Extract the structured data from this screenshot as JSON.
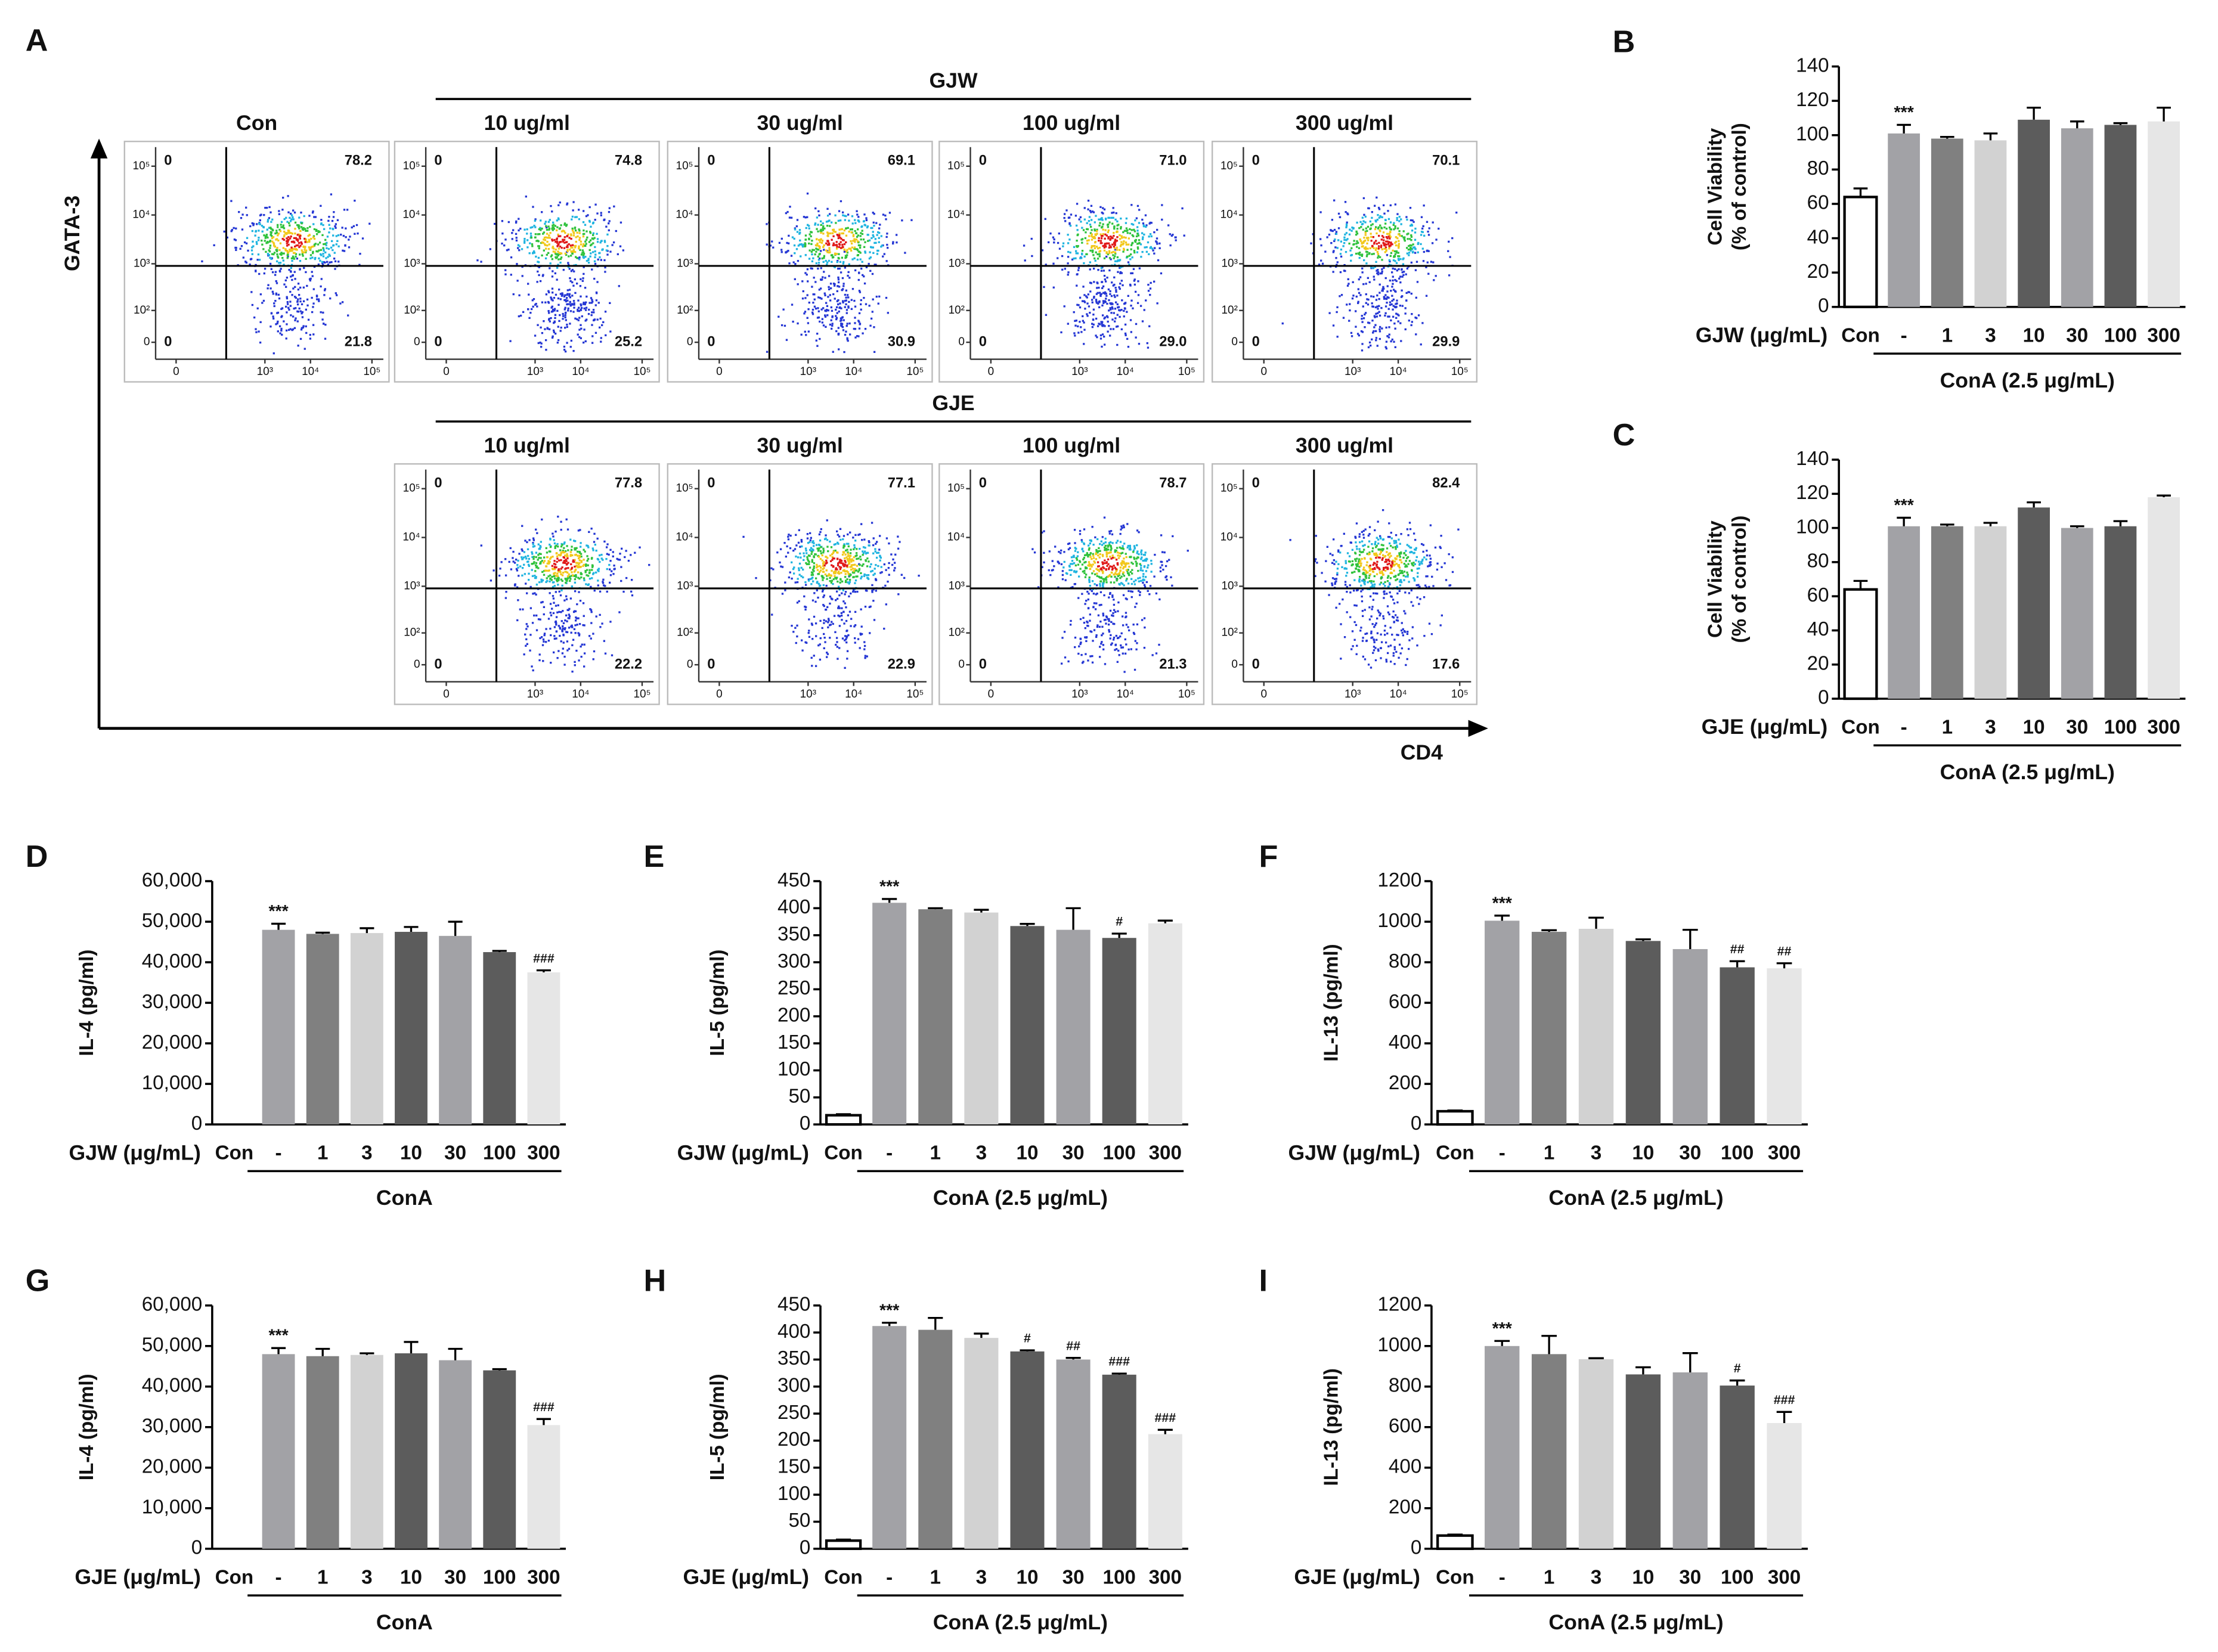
{
  "flow": {
    "label": "A",
    "y_label": "GATA-3",
    "x_label": "CD4",
    "yticks": [
      "10⁵",
      "10⁴",
      "10³",
      "10²",
      "0"
    ],
    "xticks": [
      "0",
      "10³",
      "10⁴",
      "10⁵"
    ],
    "control": {
      "title": "Con",
      "quadrants": [
        "0",
        "78.2",
        "0",
        "21.8"
      ]
    },
    "groups": [
      {
        "name": "GJW",
        "panels": [
          {
            "title": "10 ug/ml",
            "quadrants": [
              "0",
              "74.8",
              "0",
              "25.2"
            ]
          },
          {
            "title": "30 ug/ml",
            "quadrants": [
              "0",
              "69.1",
              "0",
              "30.9"
            ]
          },
          {
            "title": "100 ug/ml",
            "quadrants": [
              "0",
              "71.0",
              "0",
              "29.0"
            ]
          },
          {
            "title": "300 ug/ml",
            "quadrants": [
              "0",
              "70.1",
              "0",
              "29.9"
            ]
          }
        ]
      },
      {
        "name": "GJE",
        "panels": [
          {
            "title": "10 ug/ml",
            "quadrants": [
              "0",
              "77.8",
              "0",
              "22.2"
            ]
          },
          {
            "title": "30 ug/ml",
            "quadrants": [
              "0",
              "77.1",
              "0",
              "22.9"
            ]
          },
          {
            "title": "100 ug/ml",
            "quadrants": [
              "0",
              "78.7",
              "0",
              "21.3"
            ]
          },
          {
            "title": "300 ug/ml",
            "quadrants": [
              "0",
              "82.4",
              "0",
              "17.6"
            ]
          }
        ]
      }
    ]
  },
  "chart_data": [
    {
      "type": "bar",
      "label": "B",
      "y_label": [
        "Cell Viability",
        "(% of control)"
      ],
      "x_label": "GJW (μg/mL)",
      "group_label": "ConA (2.5 μg/mL)",
      "categories": [
        "Con",
        "-",
        "1",
        "3",
        "10",
        "30",
        "100",
        "300"
      ],
      "values": [
        64,
        101,
        98,
        97,
        109,
        104,
        106,
        108
      ],
      "errors": [
        5,
        5,
        1,
        4,
        7,
        4,
        1,
        8
      ],
      "annotations": [
        null,
        "***",
        null,
        null,
        null,
        null,
        null,
        null
      ],
      "colors": [
        "#ffffff",
        "#a2a2a6",
        "#808080",
        "#d2d2d2",
        "#5c5c5c",
        "#a2a2a6",
        "#5c5c5c",
        "#e6e6e6"
      ],
      "ylim": [
        0,
        140
      ],
      "yticks": [
        0,
        20,
        40,
        60,
        80,
        100,
        120,
        140
      ]
    },
    {
      "type": "bar",
      "label": "C",
      "y_label": [
        "Cell Viability",
        "(% of control)"
      ],
      "x_label": "GJE (μg/mL)",
      "group_label": "ConA (2.5 μg/mL)",
      "categories": [
        "Con",
        "-",
        "1",
        "3",
        "10",
        "30",
        "100",
        "300"
      ],
      "values": [
        64,
        101,
        101,
        101,
        112,
        100,
        101,
        118
      ],
      "errors": [
        5,
        5,
        1,
        2,
        3,
        1,
        3,
        1
      ],
      "annotations": [
        null,
        "***",
        null,
        null,
        null,
        null,
        null,
        null
      ],
      "colors": [
        "#ffffff",
        "#a2a2a6",
        "#808080",
        "#d2d2d2",
        "#5c5c5c",
        "#a2a2a6",
        "#5c5c5c",
        "#e6e6e6"
      ],
      "ylim": [
        0,
        140
      ],
      "yticks": [
        0,
        20,
        40,
        60,
        80,
        100,
        120,
        140
      ]
    },
    {
      "type": "bar",
      "label": "D",
      "y_label": [
        "IL-4 (pg/ml)"
      ],
      "x_label": "GJW (μg/mL)",
      "group_label": "ConA",
      "categories": [
        "Con",
        "-",
        "1",
        "3",
        "10",
        "30",
        "100",
        "300"
      ],
      "values": [
        0,
        48000,
        47000,
        47200,
        47500,
        46500,
        42500,
        37500
      ],
      "errors": [
        null,
        1500,
        300,
        1200,
        1200,
        3500,
        300,
        500
      ],
      "annotations": [
        null,
        "***",
        null,
        null,
        null,
        null,
        null,
        "###"
      ],
      "colors": [
        "#ffffff",
        "#a2a2a6",
        "#808080",
        "#d2d2d2",
        "#5c5c5c",
        "#a2a2a6",
        "#5c5c5c",
        "#e6e6e6"
      ],
      "ylim": [
        0,
        60000
      ],
      "yticks": [
        0,
        {
          "value": 10000,
          "label": "10,000"
        },
        {
          "value": 20000,
          "label": "20,000"
        },
        {
          "value": 30000,
          "label": "30,000"
        },
        {
          "value": 40000,
          "label": "40,000"
        },
        {
          "value": 50000,
          "label": "50,000"
        },
        {
          "value": 60000,
          "label": "60,000"
        }
      ]
    },
    {
      "type": "bar",
      "label": "E",
      "y_label": [
        "IL-5 (pg/ml)"
      ],
      "x_label": "GJW (μg/mL)",
      "group_label": "ConA (2.5 μg/mL)",
      "categories": [
        "Con",
        "-",
        "1",
        "3",
        "10",
        "30",
        "100",
        "300"
      ],
      "values": [
        17,
        410,
        398,
        392,
        367,
        360,
        345,
        372
      ],
      "errors": [
        2,
        7,
        2,
        5,
        4,
        40,
        8,
        5
      ],
      "annotations": [
        null,
        "***",
        null,
        null,
        null,
        null,
        "#",
        null
      ],
      "colors": [
        "#ffffff",
        "#a2a2a6",
        "#808080",
        "#d2d2d2",
        "#5c5c5c",
        "#a2a2a6",
        "#5c5c5c",
        "#e6e6e6"
      ],
      "ylim": [
        0,
        450
      ],
      "yticks": [
        0,
        50,
        100,
        150,
        200,
        250,
        300,
        350,
        400,
        450
      ]
    },
    {
      "type": "bar",
      "label": "F",
      "y_label": [
        "IL-13 (pg/ml)"
      ],
      "x_label": "GJW (μg/mL)",
      "group_label": "ConA (2.5 μg/mL)",
      "categories": [
        "Con",
        "-",
        "1",
        "3",
        "10",
        "30",
        "100",
        "300"
      ],
      "values": [
        65,
        1005,
        950,
        965,
        905,
        865,
        775,
        770
      ],
      "errors": [
        4,
        25,
        8,
        55,
        8,
        95,
        30,
        25
      ],
      "annotations": [
        null,
        "***",
        null,
        null,
        null,
        null,
        "##",
        "##"
      ],
      "colors": [
        "#ffffff",
        "#a2a2a6",
        "#808080",
        "#d2d2d2",
        "#5c5c5c",
        "#a2a2a6",
        "#5c5c5c",
        "#e6e6e6"
      ],
      "ylim": [
        0,
        1200
      ],
      "yticks": [
        0,
        200,
        400,
        600,
        800,
        1000,
        1200
      ]
    },
    {
      "type": "bar",
      "label": "G",
      "y_label": [
        "IL-4 (pg/ml)"
      ],
      "x_label": "GJE (μg/mL)",
      "group_label": "ConA",
      "categories": [
        "Con",
        "-",
        "1",
        "3",
        "10",
        "30",
        "100",
        "300"
      ],
      "values": [
        0,
        48000,
        47500,
        47800,
        48200,
        46500,
        44000,
        30500
      ],
      "errors": [
        null,
        1500,
        1800,
        400,
        2800,
        2800,
        300,
        1500
      ],
      "annotations": [
        null,
        "***",
        null,
        null,
        null,
        null,
        null,
        "###"
      ],
      "colors": [
        "#ffffff",
        "#a2a2a6",
        "#808080",
        "#d2d2d2",
        "#5c5c5c",
        "#a2a2a6",
        "#5c5c5c",
        "#e6e6e6"
      ],
      "ylim": [
        0,
        60000
      ],
      "yticks": [
        0,
        {
          "value": 10000,
          "label": "10,000"
        },
        {
          "value": 20000,
          "label": "20,000"
        },
        {
          "value": 30000,
          "label": "30,000"
        },
        {
          "value": 40000,
          "label": "40,000"
        },
        {
          "value": 50000,
          "label": "50,000"
        },
        {
          "value": 60000,
          "label": "60,000"
        }
      ]
    },
    {
      "type": "bar",
      "label": "H",
      "y_label": [
        "IL-5 (pg/ml)"
      ],
      "x_label": "GJE (μg/mL)",
      "group_label": "ConA (2.5 μg/mL)",
      "categories": [
        "Con",
        "-",
        "1",
        "3",
        "10",
        "30",
        "100",
        "300"
      ],
      "values": [
        15,
        412,
        405,
        390,
        365,
        350,
        322,
        212
      ],
      "errors": [
        2,
        6,
        22,
        8,
        2,
        3,
        2,
        8
      ],
      "annotations": [
        null,
        "***",
        null,
        null,
        "#",
        "##",
        "###",
        "###"
      ],
      "colors": [
        "#ffffff",
        "#a2a2a6",
        "#808080",
        "#d2d2d2",
        "#5c5c5c",
        "#a2a2a6",
        "#5c5c5c",
        "#e6e6e6"
      ],
      "ylim": [
        0,
        450
      ],
      "yticks": [
        0,
        50,
        100,
        150,
        200,
        250,
        300,
        350,
        400,
        450
      ]
    },
    {
      "type": "bar",
      "label": "I",
      "y_label": [
        "IL-13 (pg/ml)"
      ],
      "x_label": "GJE (μg/mL)",
      "group_label": "ConA (2.5 μg/mL)",
      "categories": [
        "Con",
        "-",
        "1",
        "3",
        "10",
        "30",
        "100",
        "300"
      ],
      "values": [
        65,
        1000,
        960,
        935,
        860,
        870,
        805,
        620
      ],
      "errors": [
        5,
        25,
        90,
        5,
        35,
        95,
        25,
        55
      ],
      "annotations": [
        null,
        "***",
        null,
        null,
        null,
        null,
        "#",
        "###"
      ],
      "colors": [
        "#ffffff",
        "#a2a2a6",
        "#808080",
        "#d2d2d2",
        "#5c5c5c",
        "#a2a2a6",
        "#5c5c5c",
        "#e6e6e6"
      ],
      "ylim": [
        0,
        1200
      ],
      "yticks": [
        0,
        200,
        400,
        600,
        800,
        1000,
        1200
      ]
    }
  ]
}
